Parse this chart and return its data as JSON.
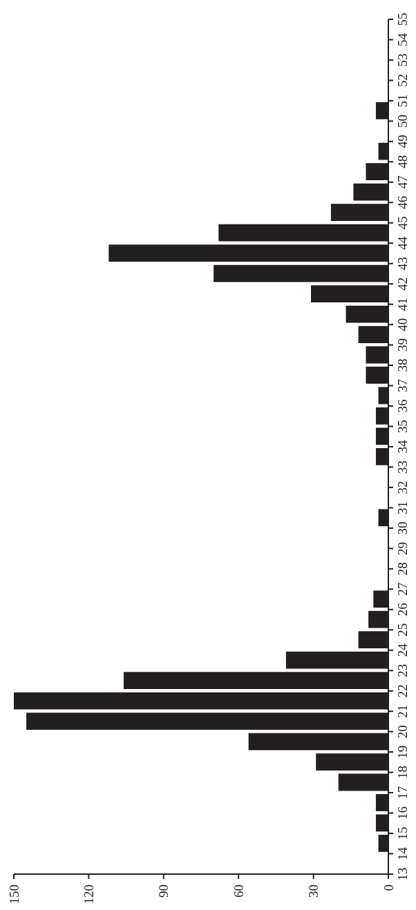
{
  "chart_data": {
    "type": "histogram",
    "orientation": "horizontal",
    "bins": [
      13,
      14,
      15,
      16,
      17,
      18,
      19,
      20,
      21,
      22,
      23,
      24,
      25,
      26,
      27,
      28,
      29,
      30,
      31,
      32,
      33,
      34,
      35,
      36,
      37,
      38,
      39,
      40,
      41,
      42,
      43,
      44,
      45,
      46,
      47,
      48,
      49,
      50,
      51,
      52,
      53,
      54,
      55
    ],
    "values": [
      0,
      4,
      5,
      5,
      20,
      29,
      56,
      145,
      150,
      106,
      41,
      12,
      8,
      6,
      0,
      0,
      0,
      4,
      0,
      0,
      5,
      5,
      5,
      4,
      9,
      9,
      12,
      17,
      31,
      70,
      112,
      68,
      23,
      14,
      9,
      4,
      0,
      5,
      0,
      0,
      0,
      0
    ],
    "color": "#231f20",
    "xlim": [
      150,
      0
    ],
    "xticks": [
      0,
      30,
      60,
      90,
      120,
      150
    ],
    "ylim": [
      13,
      55
    ],
    "yticks": [
      13,
      14,
      15,
      16,
      17,
      18,
      19,
      20,
      21,
      22,
      23,
      24,
      25,
      26,
      27,
      28,
      29,
      30,
      31,
      32,
      33,
      34,
      35,
      36,
      37,
      38,
      39,
      40,
      41,
      42,
      43,
      44,
      45,
      46,
      47,
      48,
      49,
      50,
      51,
      52,
      53,
      54,
      55
    ]
  }
}
